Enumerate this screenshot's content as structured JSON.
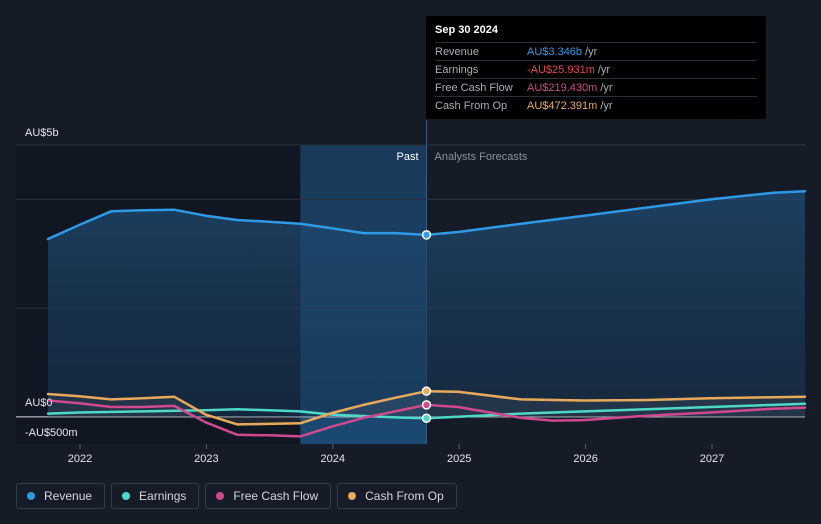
{
  "chart_data": {
    "type": "line",
    "x_domain": [
      2021.7,
      2027.75
    ],
    "y_domain": [
      -0.5,
      5.0
    ],
    "y_tick_labels": [
      {
        "value": 5,
        "label": "AU$5b"
      },
      {
        "value": 0,
        "label": "AU$0"
      },
      {
        "value": -0.5,
        "label": "-AU$500m"
      }
    ],
    "x_tick_labels": [
      {
        "value": 2022,
        "label": "2022"
      },
      {
        "value": 2023,
        "label": "2023"
      },
      {
        "value": 2024,
        "label": "2024"
      },
      {
        "value": 2025,
        "label": "2025"
      },
      {
        "value": 2026,
        "label": "2026"
      },
      {
        "value": 2027,
        "label": "2027"
      }
    ],
    "gridlines": [
      4.0,
      2.0
    ],
    "past_label": "Past",
    "forecast_label": "Analysts Forecasts",
    "highlight_start": 2023.75,
    "divider_x": 2024.75,
    "series": [
      {
        "name": "Revenue",
        "color": "#2e9ae6",
        "points": [
          [
            2021.75,
            3.27
          ],
          [
            2022.0,
            3.53
          ],
          [
            2022.25,
            3.78
          ],
          [
            2022.5,
            3.8
          ],
          [
            2022.75,
            3.81
          ],
          [
            2023.0,
            3.7
          ],
          [
            2023.25,
            3.62
          ],
          [
            2023.5,
            3.59
          ],
          [
            2023.75,
            3.55
          ],
          [
            2024.0,
            3.47
          ],
          [
            2024.25,
            3.38
          ],
          [
            2024.5,
            3.38
          ],
          [
            2024.75,
            3.346
          ],
          [
            2025.0,
            3.4
          ],
          [
            2025.5,
            3.55
          ],
          [
            2026.0,
            3.7
          ],
          [
            2026.5,
            3.85
          ],
          [
            2027.0,
            4.0
          ],
          [
            2027.5,
            4.12
          ],
          [
            2027.75,
            4.15
          ]
        ]
      },
      {
        "name": "Earnings",
        "color": "#4fd8c8",
        "points": [
          [
            2021.75,
            0.06
          ],
          [
            2022.0,
            0.08
          ],
          [
            2022.5,
            0.1
          ],
          [
            2023.0,
            0.12
          ],
          [
            2023.25,
            0.14
          ],
          [
            2023.5,
            0.12
          ],
          [
            2023.75,
            0.1
          ],
          [
            2024.0,
            0.04
          ],
          [
            2024.5,
            -0.01
          ],
          [
            2024.75,
            -0.026
          ],
          [
            2025.0,
            0.0
          ],
          [
            2025.5,
            0.06
          ],
          [
            2026.0,
            0.1
          ],
          [
            2026.5,
            0.14
          ],
          [
            2027.0,
            0.18
          ],
          [
            2027.5,
            0.22
          ],
          [
            2027.75,
            0.24
          ]
        ]
      },
      {
        "name": "Free Cash Flow",
        "color": "#d0498f",
        "points": [
          [
            2021.75,
            0.3
          ],
          [
            2022.0,
            0.25
          ],
          [
            2022.25,
            0.18
          ],
          [
            2022.5,
            0.18
          ],
          [
            2022.75,
            0.2
          ],
          [
            2023.0,
            -0.1
          ],
          [
            2023.25,
            -0.33
          ],
          [
            2023.5,
            -0.34
          ],
          [
            2023.75,
            -0.36
          ],
          [
            2024.0,
            -0.18
          ],
          [
            2024.25,
            -0.02
          ],
          [
            2024.5,
            0.1
          ],
          [
            2024.75,
            0.219
          ],
          [
            2025.0,
            0.18
          ],
          [
            2025.5,
            -0.02
          ],
          [
            2025.75,
            -0.07
          ],
          [
            2026.0,
            -0.06
          ],
          [
            2026.5,
            0.02
          ],
          [
            2027.0,
            0.08
          ],
          [
            2027.5,
            0.15
          ],
          [
            2027.75,
            0.17
          ]
        ]
      },
      {
        "name": "Cash From Op",
        "color": "#e9a95a",
        "points": [
          [
            2021.75,
            0.42
          ],
          [
            2022.0,
            0.38
          ],
          [
            2022.25,
            0.32
          ],
          [
            2022.5,
            0.34
          ],
          [
            2022.75,
            0.37
          ],
          [
            2023.0,
            0.04
          ],
          [
            2023.25,
            -0.14
          ],
          [
            2023.5,
            -0.13
          ],
          [
            2023.75,
            -0.12
          ],
          [
            2024.0,
            0.07
          ],
          [
            2024.25,
            0.22
          ],
          [
            2024.5,
            0.35
          ],
          [
            2024.75,
            0.472
          ],
          [
            2025.0,
            0.46
          ],
          [
            2025.5,
            0.32
          ],
          [
            2026.0,
            0.3
          ],
          [
            2026.5,
            0.31
          ],
          [
            2027.0,
            0.34
          ],
          [
            2027.5,
            0.36
          ],
          [
            2027.75,
            0.37
          ]
        ]
      }
    ]
  },
  "tooltip": {
    "date": "Sep 30 2024",
    "rows": [
      {
        "label": "Revenue",
        "value": "AU$3.346b",
        "unit": "/yr",
        "color": "#2e9ae6"
      },
      {
        "label": "Earnings",
        "value": "-AU$25.931m",
        "unit": "/yr",
        "color": "#e8474c"
      },
      {
        "label": "Free Cash Flow",
        "value": "AU$219.430m",
        "unit": "/yr",
        "color": "#d0498f"
      },
      {
        "label": "Cash From Op",
        "value": "AU$472.391m",
        "unit": "/yr",
        "color": "#e9a95a"
      }
    ]
  },
  "legend": [
    {
      "label": "Revenue",
      "color": "#2e9ae6"
    },
    {
      "label": "Earnings",
      "color": "#4fd8c8"
    },
    {
      "label": "Free Cash Flow",
      "color": "#d0498f"
    },
    {
      "label": "Cash From Op",
      "color": "#e9a95a"
    }
  ]
}
